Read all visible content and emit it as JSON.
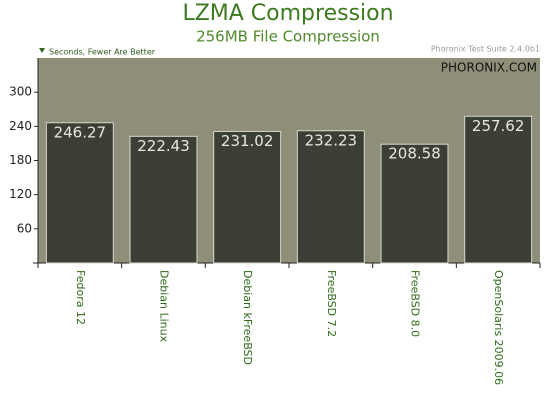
{
  "chart_data": {
    "type": "bar",
    "title": "LZMA Compression",
    "subtitle": "256MB File Compression",
    "ylabel": "Seconds, Fewer Are Better",
    "source": "Phoronix Test Suite 2.4.0b1",
    "watermark": "PHORONIX.COM",
    "categories": [
      "Fedora 12",
      "Debian Linux",
      "Debian kFreeBSD",
      "FreeBSD 7.2",
      "FreeBSD 8.0",
      "OpenSolaris 2009.06"
    ],
    "values": [
      246.27,
      222.43,
      231.02,
      232.23,
      208.58,
      257.62
    ],
    "color": "#3b3f36",
    "ylim": [
      0,
      360
    ],
    "yticks": [
      60,
      120,
      180,
      240,
      300
    ],
    "grid": false
  }
}
